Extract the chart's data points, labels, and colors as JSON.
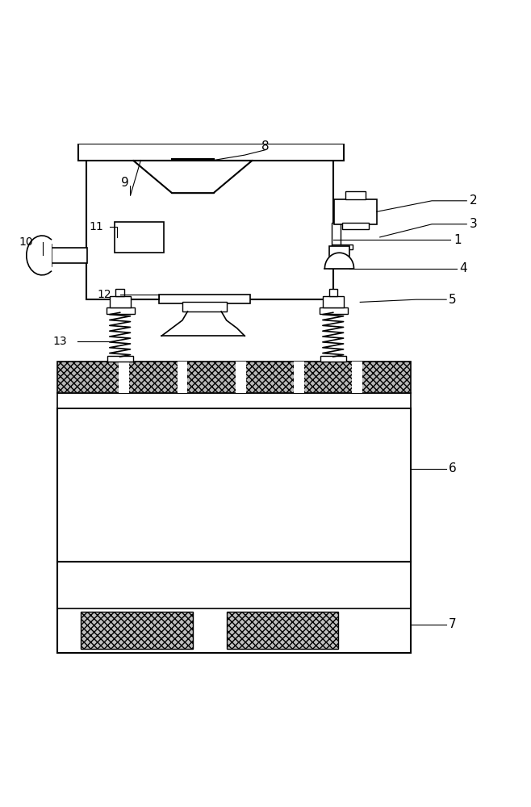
{
  "bg_color": "#ffffff",
  "line_color": "#000000",
  "lw_main": 1.5,
  "lw_med": 1.2,
  "lw_thin": 0.8,
  "hatch_fc": "#bbbbbb",
  "hatch_pattern": "xxxx"
}
